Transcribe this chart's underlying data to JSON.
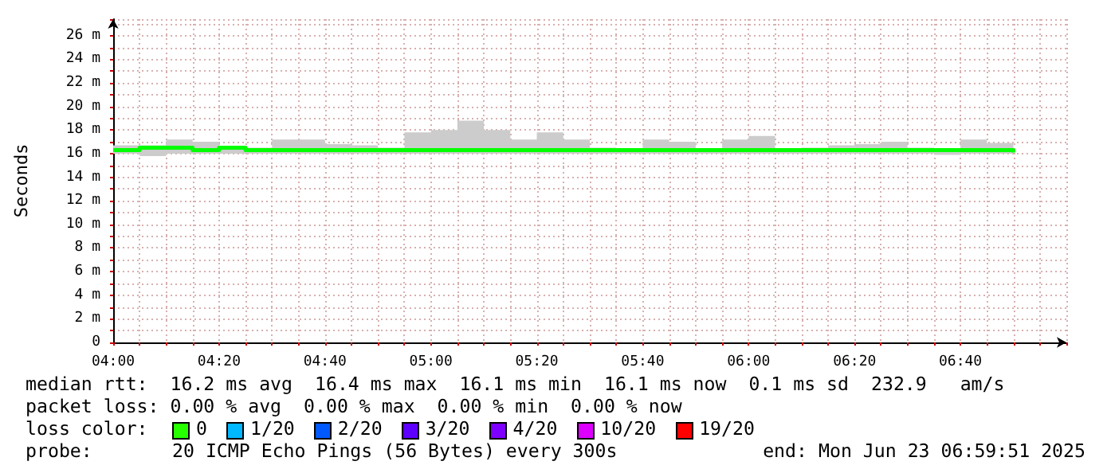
{
  "chart_data": {
    "type": "step",
    "ylabel": "Seconds",
    "x": [
      4,
      4.0833,
      4.1667,
      4.25,
      4.3333,
      4.4167,
      4.5,
      4.5833,
      4.6667,
      4.75,
      4.8333,
      4.9167,
      5,
      5.0833,
      5.1667,
      5.25,
      5.3333,
      5.4167,
      5.5,
      5.5833,
      5.6667,
      5.75,
      5.8333,
      5.9167,
      6,
      6.0833,
      6.1667,
      6.25,
      6.3333,
      6.4167,
      6.5,
      6.5833,
      6.6667,
      6.75,
      6.8333
    ],
    "series": [
      {
        "color": "#00ff00",
        "values": [
          16.3,
          16.5,
          16.5,
          16.3,
          16.5,
          16.3,
          16.3,
          16.3,
          16.3,
          16.3,
          16.3,
          16.3,
          16.3,
          16.3,
          16.3,
          16.3,
          16.3,
          16.3,
          16.3,
          16.3,
          16.3,
          16.3,
          16.3,
          16.3,
          16.3,
          16.3,
          16.3,
          16.3,
          16.3,
          16.3,
          16.3,
          16.3,
          16.3,
          16.3,
          16.1
        ],
        "lower": [
          16.0,
          15.8,
          16.0,
          16.0,
          16.0,
          16.0,
          16.0,
          16.0,
          16.0,
          16.0,
          16.0,
          16.0,
          16.0,
          16.0,
          16.0,
          16.0,
          16.0,
          16.0,
          16.0,
          16.0,
          16.0,
          16.0,
          16.0,
          16.0,
          16.0,
          16.0,
          16.0,
          16.0,
          16.0,
          16.0,
          16.0,
          15.9,
          16.0,
          16.0,
          15.9
        ],
        "upper": [
          16.7,
          16.7,
          17.2,
          17.0,
          16.6,
          16.5,
          17.2,
          17.2,
          16.8,
          16.7,
          16.5,
          17.8,
          18.0,
          18.8,
          18.0,
          17.2,
          17.8,
          17.2,
          16.5,
          16.4,
          17.2,
          17.0,
          16.4,
          17.2,
          17.5,
          16.4,
          16.5,
          16.7,
          16.8,
          17.0,
          16.5,
          16.4,
          17.2,
          16.9,
          16.7
        ]
      }
    ],
    "xlim": [
      4,
      7
    ],
    "xticks": [
      {
        "value": 4,
        "label": "04:00"
      },
      {
        "value": 4.0833,
        "label": null
      },
      {
        "value": 4.1667,
        "label": null
      },
      {
        "value": 4.25,
        "label": null
      },
      {
        "value": 4.3333,
        "label": "04:20"
      },
      {
        "value": 4.4167,
        "label": null
      },
      {
        "value": 4.5,
        "label": null
      },
      {
        "value": 4.5833,
        "label": null
      },
      {
        "value": 4.6667,
        "label": "04:40"
      },
      {
        "value": 4.75,
        "label": null
      },
      {
        "value": 4.8333,
        "label": null
      },
      {
        "value": 4.9167,
        "label": null
      },
      {
        "value": 5,
        "label": "05:00"
      },
      {
        "value": 5.0833,
        "label": null
      },
      {
        "value": 5.1667,
        "label": null
      },
      {
        "value": 5.25,
        "label": null
      },
      {
        "value": 5.3333,
        "label": "05:20"
      },
      {
        "value": 5.4167,
        "label": null
      },
      {
        "value": 5.5,
        "label": null
      },
      {
        "value": 5.5833,
        "label": null
      },
      {
        "value": 5.6667,
        "label": "05:40"
      },
      {
        "value": 5.75,
        "label": null
      },
      {
        "value": 5.8333,
        "label": null
      },
      {
        "value": 5.9167,
        "label": null
      },
      {
        "value": 6,
        "label": "06:00"
      },
      {
        "value": 6.0833,
        "label": null
      },
      {
        "value": 6.1667,
        "label": null
      },
      {
        "value": 6.25,
        "label": null
      },
      {
        "value": 6.3333,
        "label": "06:20"
      },
      {
        "value": 6.4167,
        "label": null
      },
      {
        "value": 6.5,
        "label": null
      },
      {
        "value": 6.5833,
        "label": null
      },
      {
        "value": 6.6667,
        "label": "06:40"
      },
      {
        "value": 6.75,
        "label": null
      },
      {
        "value": 6.8333,
        "label": null
      },
      {
        "value": 6.9167,
        "label": null
      },
      {
        "value": 7,
        "label": null
      }
    ],
    "ylim": [
      0,
      27.4
    ],
    "yticks": [
      {
        "value": 0,
        "label": "0"
      },
      {
        "value": 1,
        "label": null
      },
      {
        "value": 2,
        "label": "2 m"
      },
      {
        "value": 3,
        "label": null
      },
      {
        "value": 4,
        "label": "4 m"
      },
      {
        "value": 5,
        "label": null
      },
      {
        "value": 6,
        "label": "6 m"
      },
      {
        "value": 7,
        "label": null
      },
      {
        "value": 8,
        "label": "8 m"
      },
      {
        "value": 9,
        "label": null
      },
      {
        "value": 10,
        "label": "10 m"
      },
      {
        "value": 11,
        "label": null
      },
      {
        "value": 12,
        "label": "12 m"
      },
      {
        "value": 13,
        "label": null
      },
      {
        "value": 14,
        "label": "14 m"
      },
      {
        "value": 15,
        "label": null
      },
      {
        "value": 16,
        "label": "16 m"
      },
      {
        "value": 17,
        "label": null
      },
      {
        "value": 18,
        "label": "18 m"
      },
      {
        "value": 19,
        "label": null
      },
      {
        "value": 20,
        "label": "20 m"
      },
      {
        "value": 21,
        "label": null
      },
      {
        "value": 22,
        "label": "22 m"
      },
      {
        "value": 23,
        "label": null
      },
      {
        "value": 24,
        "label": "24 m"
      },
      {
        "value": 25,
        "label": null
      },
      {
        "value": 26,
        "label": "26 m"
      },
      {
        "value": 27,
        "label": null
      }
    ],
    "grid": true,
    "annotations": [
      "median rtt:  16.2 ms avg  16.4 ms max  16.1 ms min  16.1 ms now  0.1 ms sd  232.9   am/s",
      "packet loss: 0.00 % avg  0.00 % max  0.00 % min  0.00 % now",
      "loss color:",
      "0",
      "1/20",
      "2/20",
      "3/20",
      "4/20",
      "10/20",
      "19/20",
      "probe:",
      "20 ICMP Echo Pings (56 Bytes) every 300s",
      "end: Mon Jun 23 06:59:51 2025"
    ]
  }
}
